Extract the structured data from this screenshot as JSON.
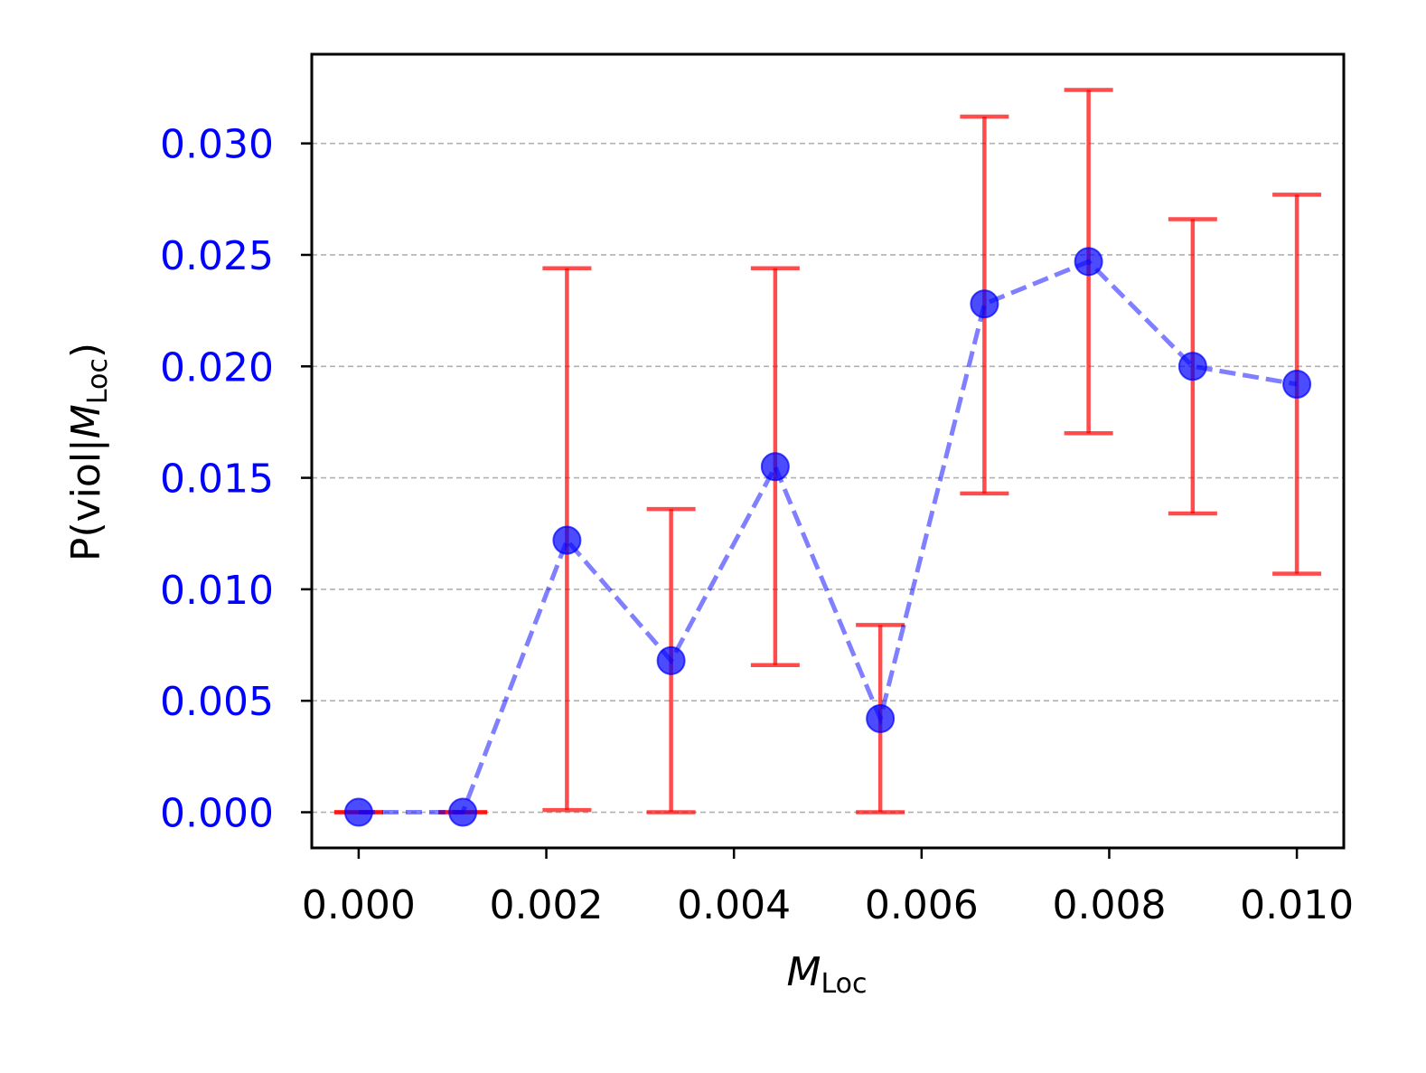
{
  "chart_data": {
    "type": "scatter",
    "title": "",
    "xlabel": {
      "main": "M",
      "sub": "Loc"
    },
    "ylabel": {
      "prefix": "P(viol|",
      "main": "M",
      "sub": "Loc",
      "suffix": ")"
    },
    "xlim": [
      -0.0005,
      0.0105
    ],
    "ylim": [
      -0.0016,
      0.034
    ],
    "xticks": [
      0.0,
      0.002,
      0.004,
      0.006,
      0.008,
      0.01
    ],
    "xtick_labels": [
      "0.000",
      "0.002",
      "0.004",
      "0.006",
      "0.008",
      "0.010"
    ],
    "yticks": [
      0.0,
      0.005,
      0.01,
      0.015,
      0.02,
      0.025,
      0.03
    ],
    "ytick_labels": [
      "0.000",
      "0.005",
      "0.010",
      "0.015",
      "0.020",
      "0.025",
      "0.030"
    ],
    "ytick_label_color": "#0000ff",
    "grid": "y-dashed",
    "series": [
      {
        "x": [
          0.0,
          0.00111,
          0.00222,
          0.00333,
          0.00444,
          0.00556,
          0.00667,
          0.00778,
          0.00889,
          0.01
        ],
        "y": [
          0.0,
          0.0,
          0.0122,
          0.0068,
          0.0155,
          0.0042,
          0.0228,
          0.0247,
          0.02,
          0.0192
        ],
        "err_low": [
          0.0,
          0.0,
          0.0001,
          0.0,
          0.0066,
          0.0,
          0.0143,
          0.017,
          0.0134,
          0.0107
        ],
        "err_high": [
          0.0,
          0.0,
          0.0244,
          0.0136,
          0.0244,
          0.0084,
          0.0312,
          0.0324,
          0.0266,
          0.0277
        ],
        "marker_color": "#0000ff",
        "line_color": "#0000ff",
        "line_style": "dashed",
        "error_color": "#ff0000"
      }
    ]
  }
}
